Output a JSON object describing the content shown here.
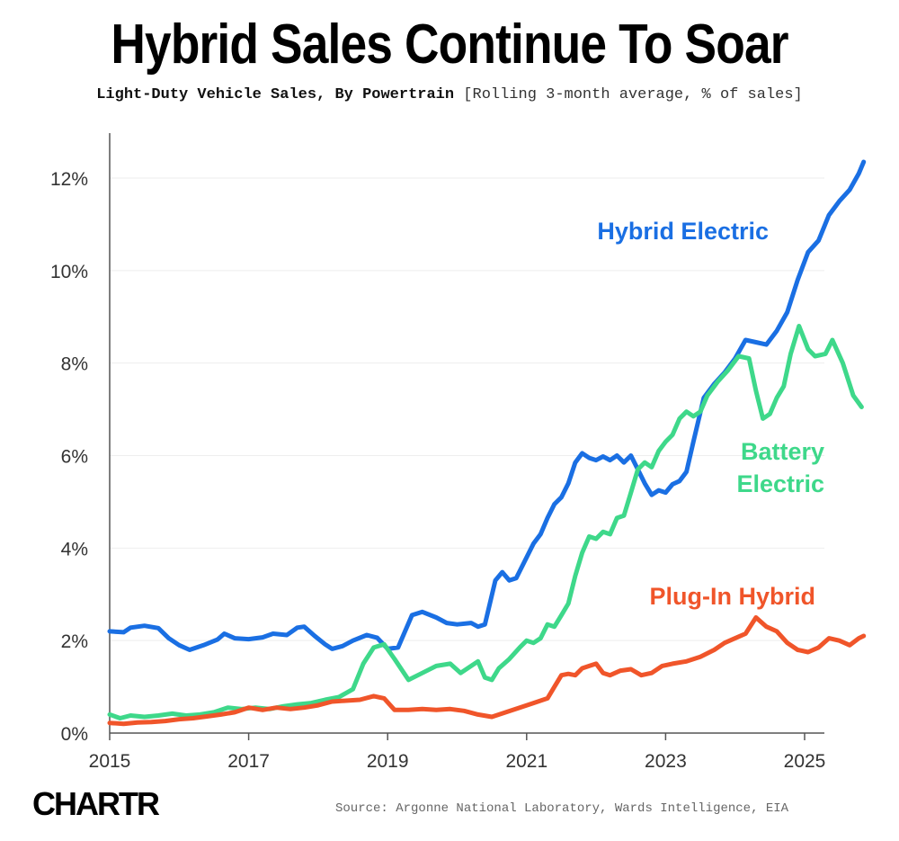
{
  "header": {
    "title": "Hybrid Sales Continue To Soar",
    "subtitle_bold": "Light-Duty Vehicle Sales, By Powertrain",
    "subtitle_note": "[Rolling 3-month average, % of sales]"
  },
  "footer": {
    "logo": "CHARTR",
    "source": "Source: Argonne National Laboratory, Wards Intelligence, EIA"
  },
  "colors": {
    "hybrid": "#1a6fe3",
    "battery": "#3ed88a",
    "plugin": "#f0552a",
    "grid": "#eeeeee",
    "axis": "#555555"
  },
  "chart_data": {
    "type": "line",
    "title": "Hybrid Sales Continue To Soar",
    "xlabel": "",
    "ylabel": "% of sales",
    "xlim": [
      2015.0,
      2025.25
    ],
    "ylim": [
      0,
      13
    ],
    "x_ticks": [
      2015,
      2017,
      2019,
      2021,
      2023,
      2025
    ],
    "x_tick_labels": [
      "2015",
      "2017",
      "2019",
      "2021",
      "2023",
      "2025"
    ],
    "y_ticks": [
      0,
      2,
      4,
      6,
      8,
      10,
      12
    ],
    "y_tick_labels": [
      "0%",
      "2%",
      "4%",
      "6%",
      "8%",
      "10%",
      "12%"
    ],
    "grid": true,
    "series": [
      {
        "name": "Hybrid Electric",
        "label_lines": [
          "Hybrid Electric"
        ],
        "color_key": "hybrid",
        "points": [
          [
            2015.0,
            2.2
          ],
          [
            2015.2,
            2.18
          ],
          [
            2015.3,
            2.28
          ],
          [
            2015.5,
            2.32
          ],
          [
            2015.7,
            2.27
          ],
          [
            2015.85,
            2.05
          ],
          [
            2016.0,
            1.9
          ],
          [
            2016.15,
            1.8
          ],
          [
            2016.35,
            1.9
          ],
          [
            2016.55,
            2.02
          ],
          [
            2016.65,
            2.15
          ],
          [
            2016.8,
            2.05
          ],
          [
            2017.0,
            2.03
          ],
          [
            2017.2,
            2.07
          ],
          [
            2017.35,
            2.15
          ],
          [
            2017.55,
            2.12
          ],
          [
            2017.7,
            2.28
          ],
          [
            2017.8,
            2.3
          ],
          [
            2017.95,
            2.1
          ],
          [
            2018.1,
            1.92
          ],
          [
            2018.2,
            1.82
          ],
          [
            2018.35,
            1.88
          ],
          [
            2018.5,
            2.0
          ],
          [
            2018.7,
            2.12
          ],
          [
            2018.85,
            2.06
          ],
          [
            2019.0,
            1.82
          ],
          [
            2019.15,
            1.85
          ],
          [
            2019.35,
            2.55
          ],
          [
            2019.5,
            2.62
          ],
          [
            2019.7,
            2.5
          ],
          [
            2019.85,
            2.38
          ],
          [
            2020.0,
            2.35
          ],
          [
            2020.2,
            2.38
          ],
          [
            2020.3,
            2.3
          ],
          [
            2020.4,
            2.35
          ],
          [
            2020.55,
            3.3
          ],
          [
            2020.65,
            3.48
          ],
          [
            2020.75,
            3.3
          ],
          [
            2020.85,
            3.35
          ],
          [
            2021.0,
            3.8
          ],
          [
            2021.1,
            4.1
          ],
          [
            2021.2,
            4.3
          ],
          [
            2021.3,
            4.65
          ],
          [
            2021.4,
            4.95
          ],
          [
            2021.5,
            5.1
          ],
          [
            2021.6,
            5.4
          ],
          [
            2021.7,
            5.85
          ],
          [
            2021.8,
            6.05
          ],
          [
            2021.9,
            5.95
          ],
          [
            2022.0,
            5.9
          ],
          [
            2022.1,
            5.98
          ],
          [
            2022.2,
            5.9
          ],
          [
            2022.3,
            6.0
          ],
          [
            2022.4,
            5.85
          ],
          [
            2022.5,
            6.0
          ],
          [
            2022.6,
            5.7
          ],
          [
            2022.7,
            5.4
          ],
          [
            2022.8,
            5.15
          ],
          [
            2022.9,
            5.25
          ],
          [
            2023.0,
            5.2
          ],
          [
            2023.1,
            5.38
          ],
          [
            2023.2,
            5.45
          ],
          [
            2023.3,
            5.65
          ],
          [
            2023.4,
            6.3
          ],
          [
            2023.55,
            7.25
          ],
          [
            2023.7,
            7.55
          ],
          [
            2023.85,
            7.8
          ],
          [
            2024.0,
            8.1
          ],
          [
            2024.15,
            8.5
          ],
          [
            2024.3,
            8.45
          ],
          [
            2024.45,
            8.4
          ],
          [
            2024.6,
            8.7
          ],
          [
            2024.75,
            9.1
          ],
          [
            2024.9,
            9.8
          ],
          [
            2025.05,
            10.4
          ],
          [
            2025.2,
            10.65
          ],
          [
            2025.35,
            11.2
          ],
          [
            2025.5,
            11.5
          ],
          [
            2025.65,
            11.75
          ],
          [
            2025.78,
            12.1
          ],
          [
            2025.85,
            12.35
          ]
        ]
      },
      {
        "name": "Battery Electric",
        "label_lines": [
          "Battery",
          "Electric"
        ],
        "color_key": "battery",
        "points": [
          [
            2015.0,
            0.4
          ],
          [
            2015.15,
            0.32
          ],
          [
            2015.3,
            0.38
          ],
          [
            2015.5,
            0.35
          ],
          [
            2015.7,
            0.38
          ],
          [
            2015.9,
            0.42
          ],
          [
            2016.1,
            0.38
          ],
          [
            2016.3,
            0.4
          ],
          [
            2016.5,
            0.45
          ],
          [
            2016.7,
            0.55
          ],
          [
            2016.9,
            0.52
          ],
          [
            2017.1,
            0.55
          ],
          [
            2017.3,
            0.52
          ],
          [
            2017.5,
            0.58
          ],
          [
            2017.7,
            0.62
          ],
          [
            2017.9,
            0.65
          ],
          [
            2018.1,
            0.72
          ],
          [
            2018.3,
            0.78
          ],
          [
            2018.5,
            0.95
          ],
          [
            2018.65,
            1.5
          ],
          [
            2018.8,
            1.85
          ],
          [
            2018.95,
            1.92
          ],
          [
            2019.1,
            1.6
          ],
          [
            2019.3,
            1.15
          ],
          [
            2019.5,
            1.3
          ],
          [
            2019.7,
            1.45
          ],
          [
            2019.9,
            1.5
          ],
          [
            2020.05,
            1.3
          ],
          [
            2020.2,
            1.45
          ],
          [
            2020.3,
            1.55
          ],
          [
            2020.4,
            1.2
          ],
          [
            2020.5,
            1.15
          ],
          [
            2020.6,
            1.4
          ],
          [
            2020.75,
            1.6
          ],
          [
            2020.9,
            1.85
          ],
          [
            2021.0,
            2.0
          ],
          [
            2021.1,
            1.95
          ],
          [
            2021.2,
            2.05
          ],
          [
            2021.3,
            2.35
          ],
          [
            2021.4,
            2.3
          ],
          [
            2021.5,
            2.55
          ],
          [
            2021.6,
            2.8
          ],
          [
            2021.7,
            3.4
          ],
          [
            2021.8,
            3.9
          ],
          [
            2021.9,
            4.25
          ],
          [
            2022.0,
            4.2
          ],
          [
            2022.1,
            4.35
          ],
          [
            2022.2,
            4.3
          ],
          [
            2022.3,
            4.65
          ],
          [
            2022.4,
            4.7
          ],
          [
            2022.5,
            5.2
          ],
          [
            2022.6,
            5.7
          ],
          [
            2022.7,
            5.85
          ],
          [
            2022.8,
            5.75
          ],
          [
            2022.9,
            6.1
          ],
          [
            2023.0,
            6.3
          ],
          [
            2023.1,
            6.45
          ],
          [
            2023.2,
            6.8
          ],
          [
            2023.3,
            6.95
          ],
          [
            2023.4,
            6.85
          ],
          [
            2023.5,
            6.95
          ],
          [
            2023.6,
            7.3
          ],
          [
            2023.75,
            7.6
          ],
          [
            2023.9,
            7.85
          ],
          [
            2024.05,
            8.15
          ],
          [
            2024.2,
            8.1
          ],
          [
            2024.3,
            7.4
          ],
          [
            2024.4,
            6.8
          ],
          [
            2024.5,
            6.9
          ],
          [
            2024.6,
            7.25
          ],
          [
            2024.7,
            7.5
          ],
          [
            2024.8,
            8.2
          ],
          [
            2024.92,
            8.8
          ],
          [
            2025.05,
            8.3
          ],
          [
            2025.15,
            8.15
          ],
          [
            2025.3,
            8.2
          ],
          [
            2025.4,
            8.5
          ],
          [
            2025.55,
            8.0
          ],
          [
            2025.7,
            7.3
          ],
          [
            2025.82,
            7.05
          ]
        ]
      },
      {
        "name": "Plug-In Hybrid",
        "label_lines": [
          "Plug-In Hybrid"
        ],
        "color_key": "plugin",
        "points": [
          [
            2015.0,
            0.22
          ],
          [
            2015.2,
            0.2
          ],
          [
            2015.4,
            0.23
          ],
          [
            2015.6,
            0.24
          ],
          [
            2015.8,
            0.26
          ],
          [
            2016.0,
            0.3
          ],
          [
            2016.2,
            0.32
          ],
          [
            2016.4,
            0.36
          ],
          [
            2016.6,
            0.4
          ],
          [
            2016.8,
            0.45
          ],
          [
            2017.0,
            0.55
          ],
          [
            2017.2,
            0.5
          ],
          [
            2017.4,
            0.55
          ],
          [
            2017.6,
            0.52
          ],
          [
            2017.8,
            0.55
          ],
          [
            2018.0,
            0.6
          ],
          [
            2018.2,
            0.68
          ],
          [
            2018.4,
            0.7
          ],
          [
            2018.6,
            0.72
          ],
          [
            2018.8,
            0.8
          ],
          [
            2018.95,
            0.75
          ],
          [
            2019.1,
            0.5
          ],
          [
            2019.3,
            0.5
          ],
          [
            2019.5,
            0.52
          ],
          [
            2019.7,
            0.5
          ],
          [
            2019.9,
            0.52
          ],
          [
            2020.1,
            0.48
          ],
          [
            2020.3,
            0.4
          ],
          [
            2020.5,
            0.35
          ],
          [
            2020.7,
            0.45
          ],
          [
            2020.9,
            0.55
          ],
          [
            2021.1,
            0.65
          ],
          [
            2021.3,
            0.75
          ],
          [
            2021.4,
            1.0
          ],
          [
            2021.5,
            1.25
          ],
          [
            2021.6,
            1.28
          ],
          [
            2021.7,
            1.25
          ],
          [
            2021.8,
            1.4
          ],
          [
            2021.9,
            1.45
          ],
          [
            2022.0,
            1.5
          ],
          [
            2022.1,
            1.3
          ],
          [
            2022.2,
            1.25
          ],
          [
            2022.35,
            1.35
          ],
          [
            2022.5,
            1.38
          ],
          [
            2022.65,
            1.25
          ],
          [
            2022.8,
            1.3
          ],
          [
            2022.95,
            1.45
          ],
          [
            2023.1,
            1.5
          ],
          [
            2023.3,
            1.55
          ],
          [
            2023.5,
            1.65
          ],
          [
            2023.7,
            1.8
          ],
          [
            2023.85,
            1.95
          ],
          [
            2024.0,
            2.05
          ],
          [
            2024.15,
            2.15
          ],
          [
            2024.3,
            2.5
          ],
          [
            2024.45,
            2.3
          ],
          [
            2024.6,
            2.2
          ],
          [
            2024.75,
            1.95
          ],
          [
            2024.9,
            1.8
          ],
          [
            2025.05,
            1.75
          ],
          [
            2025.2,
            1.85
          ],
          [
            2025.35,
            2.05
          ],
          [
            2025.5,
            2.0
          ],
          [
            2025.65,
            1.9
          ],
          [
            2025.78,
            2.05
          ],
          [
            2025.85,
            2.1
          ]
        ]
      }
    ]
  }
}
